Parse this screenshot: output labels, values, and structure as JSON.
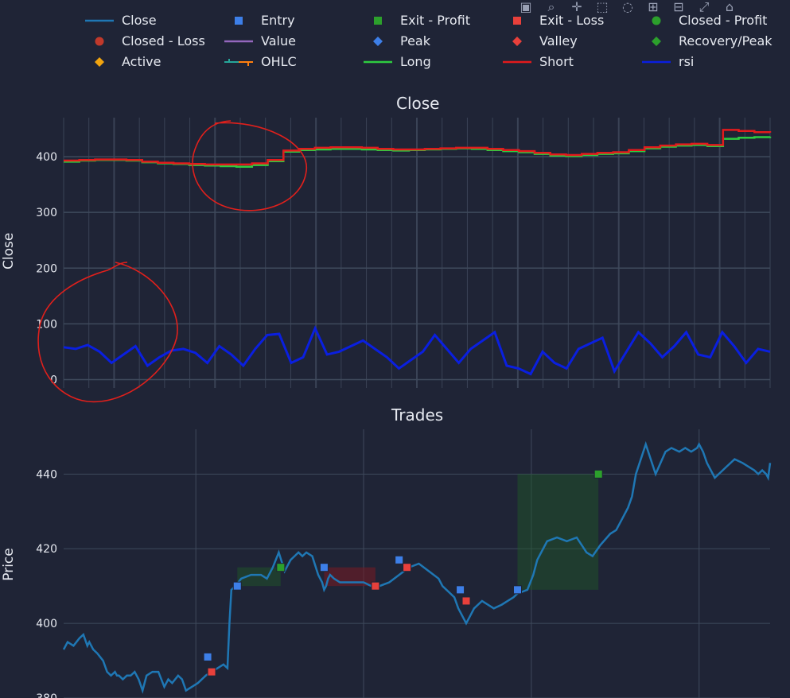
{
  "legend": [
    {
      "label": "Close",
      "kind": "line",
      "color": "#1f77b4"
    },
    {
      "label": "Entry",
      "kind": "square",
      "color": "#3d7fe8"
    },
    {
      "label": "Exit - Profit",
      "kind": "square",
      "color": "#2ca02c"
    },
    {
      "label": "Exit - Loss",
      "kind": "square",
      "color": "#e8403b"
    },
    {
      "label": "Closed - Profit",
      "kind": "circle",
      "color": "#2ca02c"
    },
    {
      "label": "Closed - Loss",
      "kind": "circle",
      "color": "#c0392b"
    },
    {
      "label": "Value",
      "kind": "line",
      "color": "#9467bd"
    },
    {
      "label": "Peak",
      "kind": "diamond",
      "color": "#3d7fe8"
    },
    {
      "label": "Valley",
      "kind": "diamond",
      "color": "#e8403b"
    },
    {
      "label": "Recovery/Peak",
      "kind": "diamond",
      "color": "#2ca02c"
    },
    {
      "label": "Active",
      "kind": "diamond",
      "color": "#f1a40f"
    },
    {
      "label": "OHLC",
      "kind": "ohlc",
      "color": "#26a69a",
      "color2": "#ff7f0e"
    },
    {
      "label": "Long",
      "kind": "line",
      "color": "#2ecc40"
    },
    {
      "label": "Short",
      "kind": "line",
      "color": "#e31a1c"
    },
    {
      "label": "rsi",
      "kind": "line",
      "color": "#0a1fe0"
    }
  ],
  "modebar": [
    "camera-icon",
    "zoom-icon",
    "pan-icon",
    "box-select-icon",
    "lasso-icon",
    "zoom-in-icon",
    "zoom-out-icon",
    "autoscale-icon",
    "reset-icon"
  ],
  "chart_data": [
    {
      "type": "line",
      "title": "Close",
      "ylabel": "Close",
      "ylim": [
        -15,
        470
      ],
      "yticks": [
        0,
        100,
        200,
        300,
        400
      ],
      "grid": true,
      "series": [
        {
          "name": "Long",
          "color": "#2ecc40",
          "values": [
            391,
            393,
            394,
            394,
            393,
            390,
            388,
            387,
            385,
            384,
            383,
            382,
            385,
            392,
            409,
            412,
            413,
            414,
            414,
            413,
            412,
            411,
            412,
            413,
            414,
            415,
            414,
            412,
            410,
            408,
            405,
            402,
            401,
            403,
            405,
            406,
            410,
            415,
            418,
            420,
            421,
            419,
            432,
            434,
            435,
            436
          ]
        },
        {
          "name": "Short",
          "color": "#e31a1c",
          "values": [
            393,
            394,
            395,
            395,
            394,
            391,
            389,
            388,
            387,
            386,
            386,
            386,
            388,
            394,
            411,
            414,
            416,
            417,
            417,
            416,
            414,
            413,
            413,
            414,
            415,
            416,
            416,
            414,
            412,
            410,
            407,
            404,
            403,
            405,
            407,
            408,
            412,
            417,
            420,
            422,
            423,
            421,
            448,
            446,
            444,
            443
          ]
        },
        {
          "name": "rsi",
          "color": "#0a1fe0",
          "values": [
            58,
            55,
            62,
            50,
            30,
            45,
            60,
            25,
            40,
            52,
            55,
            48,
            30,
            60,
            45,
            25,
            55,
            80,
            82,
            30,
            40,
            92,
            45,
            50,
            60,
            70,
            55,
            40,
            20,
            35,
            50,
            80,
            55,
            30,
            55,
            70,
            85,
            25,
            20,
            10,
            50,
            30,
            20,
            55,
            65,
            75,
            15,
            50,
            85,
            65,
            40,
            60,
            85,
            45,
            40,
            85,
            60,
            30,
            55,
            50
          ]
        }
      ]
    },
    {
      "type": "line",
      "title": "Trades",
      "ylabel": "Price",
      "ylim": [
        380,
        452
      ],
      "yticks": [
        380,
        400,
        420,
        440
      ],
      "grid": true,
      "series": [
        {
          "name": "Close",
          "color": "#1f77b4",
          "x": [
            0,
            2,
            5,
            8,
            10,
            12,
            13,
            15,
            17,
            20,
            22,
            24,
            26,
            27,
            28,
            30,
            32,
            34,
            36,
            38,
            40,
            42,
            45,
            48,
            51,
            53,
            55,
            58,
            60,
            62,
            65,
            68,
            72,
            75,
            78,
            81,
            83,
            84,
            85,
            87,
            90,
            95,
            100,
            103,
            106,
            109,
            112,
            115,
            117,
            119,
            121,
            123,
            126,
            129,
            131,
            132,
            133,
            134,
            135,
            137,
            140,
            145,
            152,
            156,
            160,
            165,
            170,
            175,
            180,
            185,
            190,
            192,
            196,
            198,
            200,
            204,
            206,
            208,
            212,
            218,
            222,
            225,
            228,
            230,
            235,
            238,
            240,
            245,
            250,
            255,
            260,
            265,
            268,
            272,
            277,
            280,
            283,
            286,
            288,
            290,
            295,
            300,
            305,
            308,
            312,
            315,
            318,
            321,
            322,
            324,
            326,
            330,
            336,
            340,
            344,
            347,
            350,
            352,
            354,
            356,
            357,
            358
          ],
          "values": [
            393,
            395,
            394,
            396,
            397,
            394,
            395,
            393,
            392,
            390,
            387,
            386,
            387,
            386,
            386,
            385,
            386,
            386,
            387,
            385,
            382,
            386,
            387,
            387,
            383,
            385,
            384,
            386,
            385,
            382,
            383,
            384,
            386,
            387,
            388,
            389,
            388,
            400,
            409,
            410,
            412,
            413,
            413,
            412,
            415,
            419,
            414,
            417,
            418,
            419,
            418,
            419,
            418,
            413,
            411,
            409,
            410,
            412,
            413,
            412,
            411,
            411,
            411,
            410,
            410,
            411,
            413,
            415,
            416,
            414,
            412,
            410,
            408,
            407,
            404,
            400,
            402,
            404,
            406,
            404,
            405,
            406,
            407,
            408,
            409,
            413,
            417,
            422,
            423,
            422,
            423,
            419,
            418,
            421,
            424,
            425,
            428,
            431,
            434,
            440,
            448,
            440,
            446,
            447,
            446,
            447,
            446,
            447,
            448,
            446,
            443,
            439,
            442,
            444,
            443,
            442,
            441,
            440,
            441,
            440,
            439,
            443
          ]
        }
      ],
      "entries": [
        [
          73,
          391
        ],
        [
          88,
          410
        ],
        [
          132,
          415
        ],
        [
          170,
          417
        ],
        [
          201,
          409
        ],
        [
          230,
          409
        ]
      ],
      "exits_profit": [
        [
          110,
          415
        ],
        [
          271,
          440
        ]
      ],
      "exits_loss": [
        [
          75,
          387
        ],
        [
          158,
          410
        ],
        [
          174,
          415
        ],
        [
          204,
          406
        ]
      ],
      "zones": [
        {
          "x0": 88,
          "x1": 110,
          "y0": 410,
          "y1": 415,
          "kind": "profit"
        },
        {
          "x0": 132,
          "x1": 158,
          "y0": 410,
          "y1": 415,
          "kind": "loss"
        },
        {
          "x0": 230,
          "x1": 271,
          "y0": 409,
          "y1": 440,
          "kind": "profit"
        }
      ]
    }
  ]
}
